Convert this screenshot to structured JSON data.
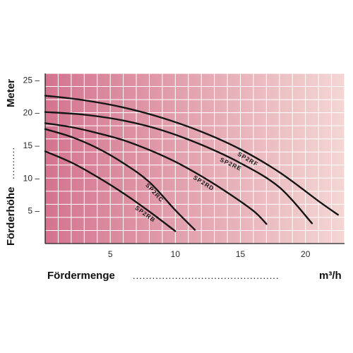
{
  "chart_data": {
    "type": "line",
    "xlabel": "Fördermenge",
    "xunit": "m³/h",
    "ylabel": "Förderhöhe",
    "yunit": "Meter",
    "xlim": [
      0,
      23
    ],
    "ylim": [
      0,
      26
    ],
    "xticks": [
      5,
      10,
      15,
      20
    ],
    "yticks": [
      5,
      10,
      15,
      20,
      25
    ],
    "grid": true,
    "colors": {
      "background_left": "#d4748f",
      "background_right": "#f3d6d3",
      "grid": "#ffffff",
      "curve": "#161616",
      "axis": "#222222"
    },
    "series": [
      {
        "name": "SP2RB",
        "x": [
          0,
          2,
          4,
          6,
          8,
          10
        ],
        "y": [
          14.1,
          12.4,
          10.2,
          7.7,
          4.9,
          1.9
        ]
      },
      {
        "name": "SP2RC",
        "x": [
          0,
          2,
          4,
          6,
          8,
          10,
          11.5
        ],
        "y": [
          17.5,
          16.3,
          14.6,
          12.3,
          9.4,
          5.1,
          2.1
        ]
      },
      {
        "name": "SP2RD",
        "x": [
          0,
          2,
          4,
          6,
          8,
          10,
          12,
          14,
          16,
          17
        ],
        "y": [
          18.4,
          17.8,
          16.9,
          15.8,
          14.3,
          12.5,
          10.3,
          7.8,
          5.0,
          3.0
        ]
      },
      {
        "name": "SP2RE",
        "x": [
          0,
          3,
          6,
          9,
          12,
          15,
          18,
          20.5
        ],
        "y": [
          20.1,
          19.7,
          18.8,
          17.3,
          15.1,
          12.3,
          8.6,
          3.1
        ]
      },
      {
        "name": "SP2RF",
        "x": [
          0,
          3,
          6,
          9,
          12,
          15,
          18,
          21,
          22.5
        ],
        "y": [
          22.6,
          21.9,
          20.8,
          19.2,
          17.1,
          14.4,
          10.9,
          6.5,
          4.4
        ]
      }
    ]
  }
}
